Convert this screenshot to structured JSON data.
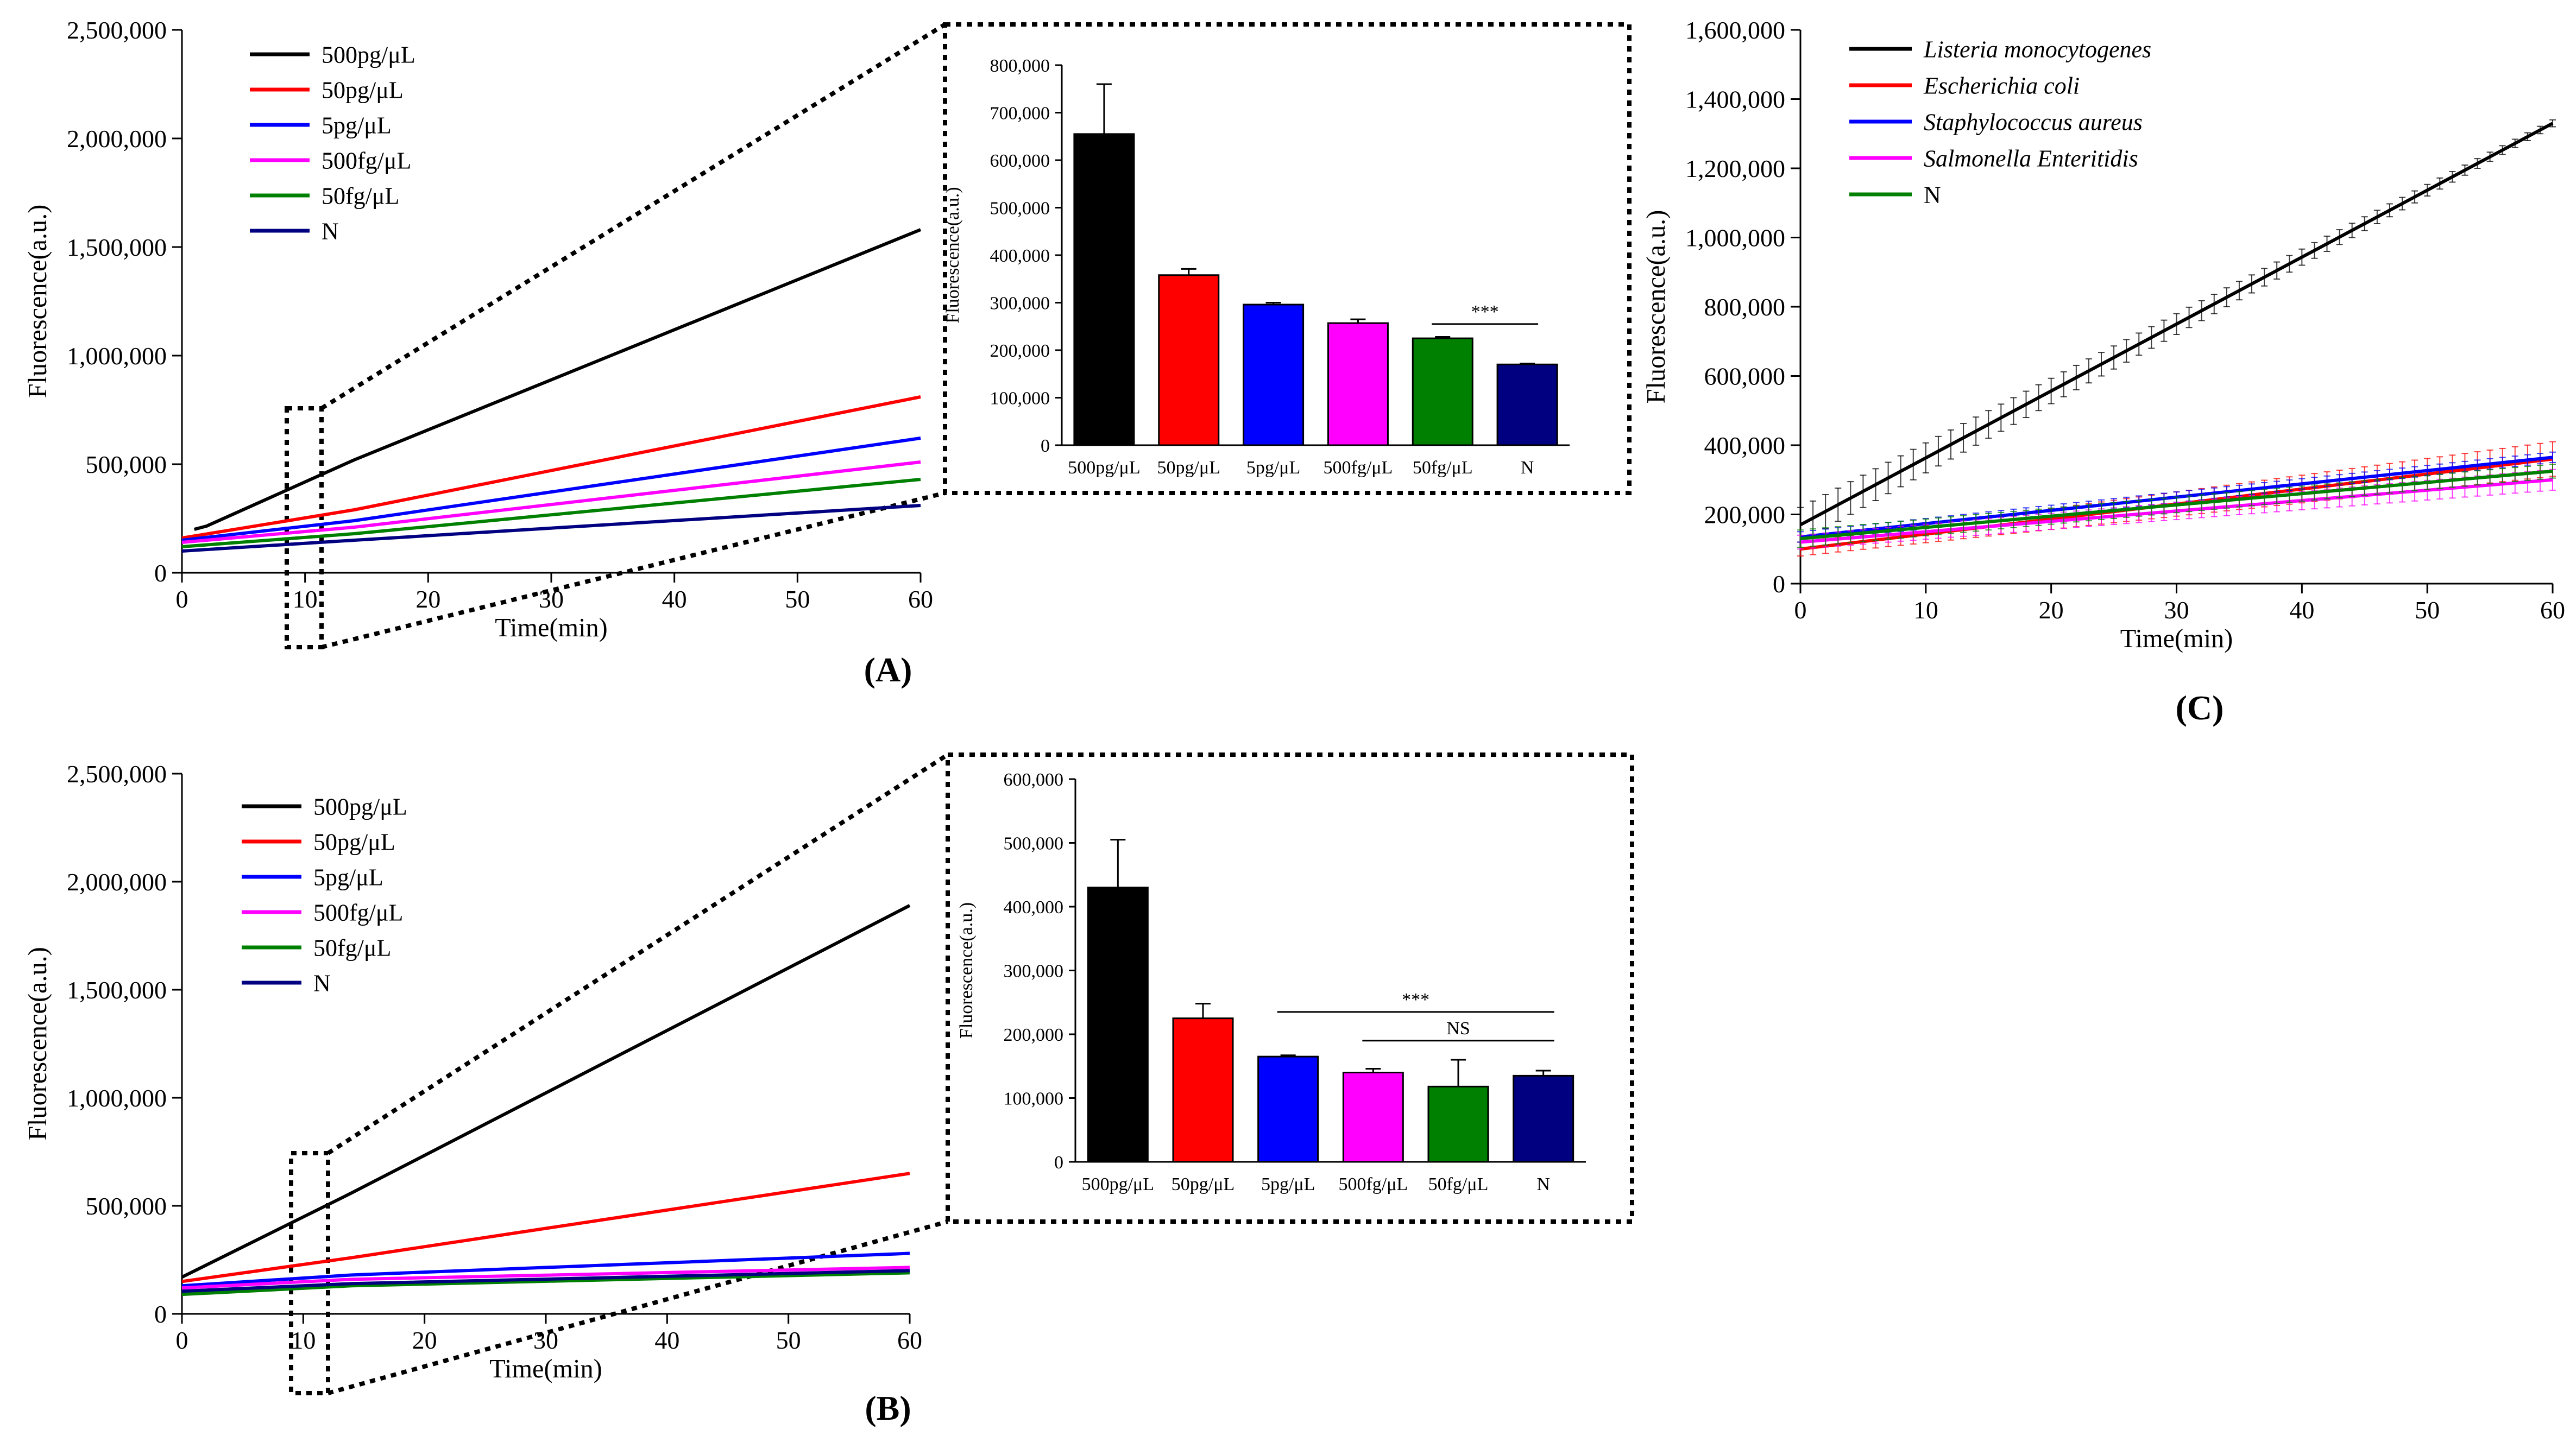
{
  "figure": {
    "panel_labels": [
      "(A)",
      "(B)",
      "(C)"
    ],
    "colors": {
      "black": "#000000",
      "red": "#ff0000",
      "blue": "#0000ff",
      "magenta": "#ff00ff",
      "green": "#008000",
      "navy": "#000080"
    }
  },
  "chart_data": [
    {
      "id": "A-line",
      "type": "line",
      "panel": "A",
      "xlabel": "Time(min)",
      "ylabel": "Fluorescence(a.u.)",
      "xlim": [
        0,
        60
      ],
      "ylim": [
        0,
        2500000
      ],
      "xticks": [
        "0",
        "10",
        "20",
        "30",
        "40",
        "50",
        "60"
      ],
      "yticks": [
        "0",
        "500,000",
        "1,000,000",
        "1,500,000",
        "2,000,000",
        "2,500,000"
      ],
      "legend_position": "top-left",
      "series": [
        {
          "name": "500pg/μL",
          "color": "#000000",
          "x": [
            1,
            2,
            14,
            60
          ],
          "y": [
            200000,
            215000,
            520000,
            1580000
          ]
        },
        {
          "name": "50pg/μL",
          "color": "#ff0000",
          "x": [
            0,
            14,
            60
          ],
          "y": [
            160000,
            290000,
            810000
          ]
        },
        {
          "name": "5pg/μL",
          "color": "#0000ff",
          "x": [
            0,
            14,
            60
          ],
          "y": [
            150000,
            240000,
            620000
          ]
        },
        {
          "name": "500fg/μL",
          "color": "#ff00ff",
          "x": [
            0,
            14,
            60
          ],
          "y": [
            140000,
            210000,
            510000
          ]
        },
        {
          "name": "50fg/μL",
          "color": "#008000",
          "x": [
            0,
            14,
            60
          ],
          "y": [
            120000,
            180000,
            430000
          ]
        },
        {
          "name": "N",
          "color": "#000080",
          "x": [
            0,
            14,
            60
          ],
          "y": [
            100000,
            150000,
            310000
          ]
        }
      ]
    },
    {
      "id": "A-bar",
      "type": "bar",
      "panel": "A",
      "ylabel": "Fluorescence(a.u.)",
      "ylim": [
        0,
        800000
      ],
      "yticks": [
        "0",
        "100,000",
        "200,000",
        "300,000",
        "400,000",
        "500,000",
        "600,000",
        "700,000",
        "800,000"
      ],
      "categories": [
        "500pg/μL",
        "50pg/μL",
        "5pg/μL",
        "500fg/μL",
        "50fg/μL",
        "N"
      ],
      "values": [
        655000,
        358000,
        296000,
        257000,
        225000,
        170000
      ],
      "errors": [
        105000,
        13000,
        4000,
        8000,
        3000,
        2000
      ],
      "colors": [
        "#000000",
        "#ff0000",
        "#0000ff",
        "#ff00ff",
        "#008000",
        "#000080"
      ],
      "annotations": [
        {
          "text": "***",
          "from": "50fg/μL",
          "to": "N",
          "y": 255000
        }
      ]
    },
    {
      "id": "B-line",
      "type": "line",
      "panel": "B",
      "xlabel": "Time(min)",
      "ylabel": "Fluorescence(a.u.)",
      "xlim": [
        0,
        60
      ],
      "ylim": [
        0,
        2500000
      ],
      "xticks": [
        "0",
        "10",
        "20",
        "30",
        "40",
        "50",
        "60"
      ],
      "yticks": [
        "0",
        "500,000",
        "1,000,000",
        "1,500,000",
        "2,000,000",
        "2,500,000"
      ],
      "legend_position": "top-left",
      "series": [
        {
          "name": "500pg/μL",
          "color": "#000000",
          "x": [
            0,
            14,
            60
          ],
          "y": [
            170000,
            560000,
            1890000
          ]
        },
        {
          "name": "50pg/μL",
          "color": "#ff0000",
          "x": [
            0,
            14,
            60
          ],
          "y": [
            150000,
            260000,
            650000
          ]
        },
        {
          "name": "5pg/μL",
          "color": "#0000ff",
          "x": [
            0,
            14,
            60
          ],
          "y": [
            130000,
            180000,
            280000
          ]
        },
        {
          "name": "500fg/μL",
          "color": "#ff00ff",
          "x": [
            0,
            14,
            60
          ],
          "y": [
            120000,
            160000,
            215000
          ]
        },
        {
          "name": "50fg/μL",
          "color": "#008000",
          "x": [
            0,
            14,
            60
          ],
          "y": [
            90000,
            130000,
            190000
          ]
        },
        {
          "name": "N",
          "color": "#000080",
          "x": [
            0,
            14,
            60
          ],
          "y": [
            105000,
            140000,
            200000
          ]
        }
      ]
    },
    {
      "id": "B-bar",
      "type": "bar",
      "panel": "B",
      "ylabel": "Fluorescence(a.u.)",
      "ylim": [
        0,
        600000
      ],
      "yticks": [
        "0",
        "100,000",
        "200,000",
        "300,000",
        "400,000",
        "500,000",
        "600,000"
      ],
      "categories": [
        "500pg/μL",
        "50pg/μL",
        "5pg/μL",
        "500fg/μL",
        "50fg/μL",
        "N"
      ],
      "values": [
        430000,
        225000,
        165000,
        140000,
        118000,
        135000
      ],
      "errors": [
        75000,
        23000,
        2000,
        6000,
        42000,
        8000
      ],
      "colors": [
        "#000000",
        "#ff0000",
        "#0000ff",
        "#ff00ff",
        "#008000",
        "#000080"
      ],
      "annotations": [
        {
          "text": "***",
          "from": "5pg/μL",
          "to": "N",
          "y": 235000
        },
        {
          "text": "NS",
          "from": "500fg/μL",
          "to": "N",
          "y": 190000
        }
      ]
    },
    {
      "id": "C-line",
      "type": "line",
      "panel": "C",
      "xlabel": "Time(min)",
      "ylabel": "Fluorescence(a.u.)",
      "xlim": [
        0,
        60
      ],
      "ylim": [
        0,
        1600000
      ],
      "xticks": [
        "0",
        "10",
        "20",
        "30",
        "40",
        "50",
        "60"
      ],
      "yticks": [
        "0",
        "200,000",
        "400,000",
        "600,000",
        "800,000",
        "1,000,000",
        "1,200,000",
        "1,400,000",
        "1,600,000"
      ],
      "legend_position": "top-left",
      "series": [
        {
          "name": "Listeria monocytogenes",
          "italic": true,
          "color": "#000000",
          "x": [
            0,
            60
          ],
          "y": [
            170000,
            1330000
          ],
          "err": [
            50000,
            10000
          ]
        },
        {
          "name": "Escherichia coli",
          "italic": true,
          "color": "#ff0000",
          "x": [
            0,
            60
          ],
          "y": [
            100000,
            360000
          ],
          "err": [
            20000,
            50000
          ]
        },
        {
          "name": "Staphylococcus aureus",
          "italic": true,
          "color": "#0000ff",
          "x": [
            0,
            60
          ],
          "y": [
            135000,
            365000
          ],
          "err": [
            15000,
            15000
          ]
        },
        {
          "name": "Salmonella Enteritidis",
          "italic": true,
          "color": "#ff00ff",
          "x": [
            0,
            60
          ],
          "y": [
            120000,
            300000
          ],
          "err": [
            20000,
            30000
          ]
        },
        {
          "name": "N",
          "italic": false,
          "color": "#008000",
          "x": [
            0,
            60
          ],
          "y": [
            130000,
            325000
          ],
          "err": [
            25000,
            20000
          ]
        }
      ]
    }
  ]
}
